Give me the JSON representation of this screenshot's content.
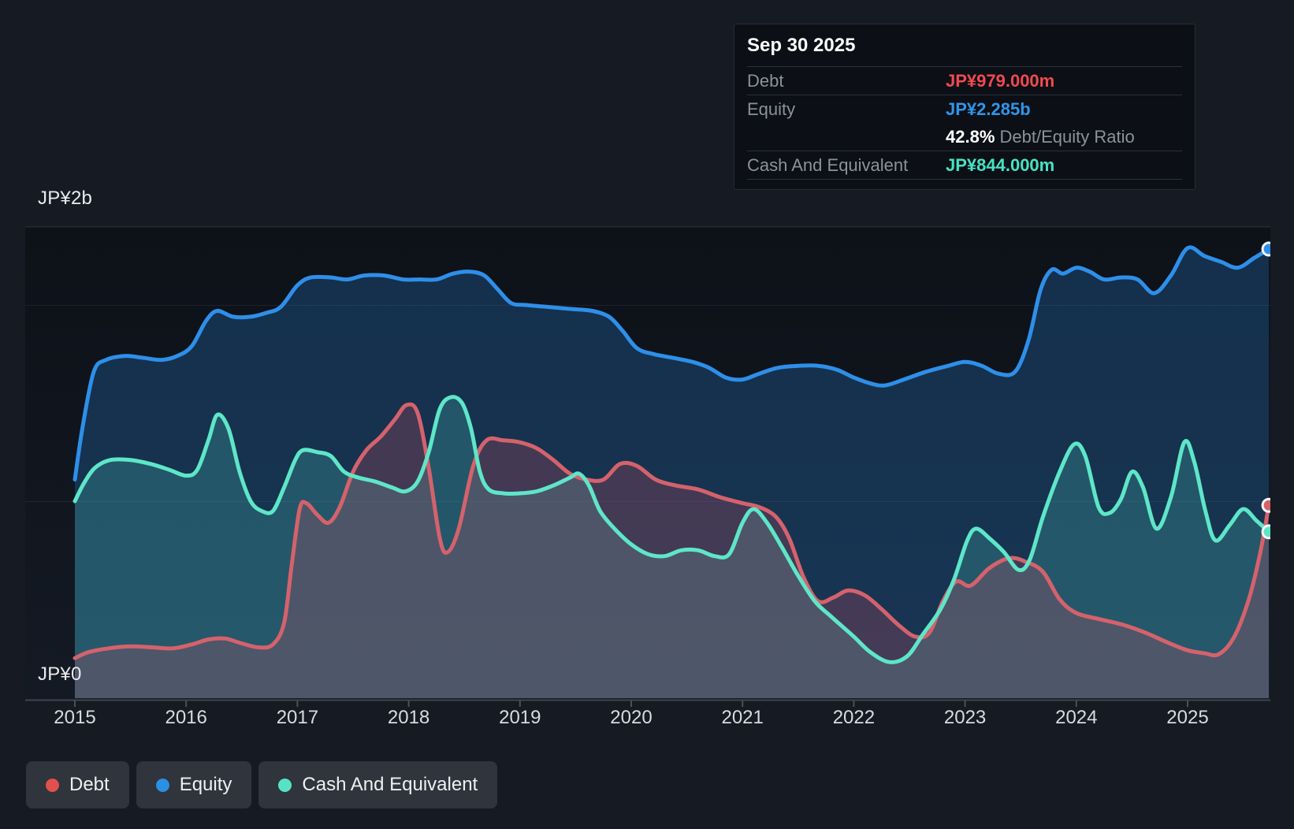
{
  "page": {
    "background": "#161a22"
  },
  "y_axis": {
    "top_label": "JP¥2b",
    "bottom_label": "JP¥0"
  },
  "x_axis": {
    "years": [
      "2015",
      "2016",
      "2017",
      "2018",
      "2019",
      "2020",
      "2021",
      "2022",
      "2023",
      "2024",
      "2025"
    ]
  },
  "tooltip": {
    "date": "Sep 30 2025",
    "rows": [
      {
        "label": "Debt",
        "value": "JP¥979.000m",
        "color": "#ef4a50"
      },
      {
        "label": "Equity",
        "value": "JP¥2.285b",
        "color": "#3095e9"
      },
      {
        "label": "Cash And Equivalent",
        "value": "JP¥844.000m",
        "color": "#46e3c3"
      }
    ],
    "ratio_value": "42.8%",
    "ratio_label": "Debt/Equity Ratio"
  },
  "legend": {
    "items": [
      {
        "label": "Debt",
        "color": "#e2504e"
      },
      {
        "label": "Equity",
        "color": "#2b8fe2"
      },
      {
        "label": "Cash And Equivalent",
        "color": "#57e3c3"
      }
    ]
  },
  "chart_data": {
    "type": "area",
    "unit": "JP¥ billions",
    "xlim": [
      2014.55,
      2025.75
    ],
    "ylim": [
      0,
      2.4
    ],
    "x_ticks": [
      2015,
      2016,
      2017,
      2018,
      2019,
      2020,
      2021,
      2022,
      2023,
      2024,
      2025
    ],
    "y_gridlines": [
      2.4,
      2.0,
      1.0,
      0
    ],
    "legend_position": "bottom-left",
    "grid": true,
    "series": [
      {
        "name": "Equity",
        "line_color": "#2e8fe9",
        "fill_color": "rgba(38,120,196,0.30)",
        "end_value": 2.285,
        "points": [
          [
            2015.0,
            1.11
          ],
          [
            2015.07,
            1.38
          ],
          [
            2015.17,
            1.66
          ],
          [
            2015.28,
            1.72
          ],
          [
            2015.45,
            1.74
          ],
          [
            2015.62,
            1.73
          ],
          [
            2015.78,
            1.72
          ],
          [
            2015.92,
            1.74
          ],
          [
            2016.05,
            1.79
          ],
          [
            2016.18,
            1.92
          ],
          [
            2016.28,
            1.97
          ],
          [
            2016.42,
            1.94
          ],
          [
            2016.58,
            1.94
          ],
          [
            2016.72,
            1.96
          ],
          [
            2016.85,
            1.99
          ],
          [
            2017.0,
            2.1
          ],
          [
            2017.12,
            2.14
          ],
          [
            2017.3,
            2.14
          ],
          [
            2017.45,
            2.13
          ],
          [
            2017.6,
            2.15
          ],
          [
            2017.78,
            2.15
          ],
          [
            2017.95,
            2.13
          ],
          [
            2018.1,
            2.13
          ],
          [
            2018.25,
            2.13
          ],
          [
            2018.4,
            2.16
          ],
          [
            2018.55,
            2.17
          ],
          [
            2018.68,
            2.15
          ],
          [
            2018.8,
            2.08
          ],
          [
            2018.92,
            2.01
          ],
          [
            2019.05,
            2.0
          ],
          [
            2019.25,
            1.99
          ],
          [
            2019.45,
            1.98
          ],
          [
            2019.65,
            1.97
          ],
          [
            2019.8,
            1.94
          ],
          [
            2019.92,
            1.87
          ],
          [
            2020.05,
            1.78
          ],
          [
            2020.2,
            1.75
          ],
          [
            2020.38,
            1.73
          ],
          [
            2020.55,
            1.71
          ],
          [
            2020.7,
            1.68
          ],
          [
            2020.85,
            1.63
          ],
          [
            2021.0,
            1.62
          ],
          [
            2021.15,
            1.65
          ],
          [
            2021.32,
            1.68
          ],
          [
            2021.5,
            1.69
          ],
          [
            2021.68,
            1.69
          ],
          [
            2021.85,
            1.67
          ],
          [
            2022.0,
            1.63
          ],
          [
            2022.15,
            1.6
          ],
          [
            2022.28,
            1.59
          ],
          [
            2022.45,
            1.62
          ],
          [
            2022.65,
            1.66
          ],
          [
            2022.85,
            1.69
          ],
          [
            2023.0,
            1.71
          ],
          [
            2023.15,
            1.69
          ],
          [
            2023.3,
            1.65
          ],
          [
            2023.45,
            1.66
          ],
          [
            2023.57,
            1.82
          ],
          [
            2023.68,
            2.08
          ],
          [
            2023.78,
            2.18
          ],
          [
            2023.88,
            2.16
          ],
          [
            2024.0,
            2.19
          ],
          [
            2024.12,
            2.17
          ],
          [
            2024.25,
            2.13
          ],
          [
            2024.4,
            2.14
          ],
          [
            2024.55,
            2.13
          ],
          [
            2024.7,
            2.06
          ],
          [
            2024.85,
            2.15
          ],
          [
            2025.0,
            2.29
          ],
          [
            2025.15,
            2.25
          ],
          [
            2025.3,
            2.22
          ],
          [
            2025.45,
            2.19
          ],
          [
            2025.6,
            2.24
          ],
          [
            2025.73,
            2.285
          ]
        ]
      },
      {
        "name": "Cash And Equivalent",
        "line_color": "#5ee6c8",
        "fill_color": "rgba(92,230,205,0.20)",
        "end_value": 0.844,
        "points": [
          [
            2015.0,
            1.0
          ],
          [
            2015.08,
            1.09
          ],
          [
            2015.18,
            1.17
          ],
          [
            2015.32,
            1.21
          ],
          [
            2015.5,
            1.21
          ],
          [
            2015.68,
            1.19
          ],
          [
            2015.85,
            1.16
          ],
          [
            2016.0,
            1.13
          ],
          [
            2016.1,
            1.16
          ],
          [
            2016.2,
            1.31
          ],
          [
            2016.28,
            1.44
          ],
          [
            2016.38,
            1.37
          ],
          [
            2016.48,
            1.15
          ],
          [
            2016.58,
            1.0
          ],
          [
            2016.68,
            0.95
          ],
          [
            2016.78,
            0.95
          ],
          [
            2016.88,
            1.07
          ],
          [
            2016.98,
            1.21
          ],
          [
            2017.05,
            1.26
          ],
          [
            2017.18,
            1.25
          ],
          [
            2017.3,
            1.23
          ],
          [
            2017.42,
            1.15
          ],
          [
            2017.55,
            1.12
          ],
          [
            2017.7,
            1.1
          ],
          [
            2017.85,
            1.07
          ],
          [
            2017.97,
            1.05
          ],
          [
            2018.08,
            1.1
          ],
          [
            2018.18,
            1.25
          ],
          [
            2018.28,
            1.47
          ],
          [
            2018.38,
            1.53
          ],
          [
            2018.48,
            1.5
          ],
          [
            2018.56,
            1.37
          ],
          [
            2018.64,
            1.15
          ],
          [
            2018.72,
            1.06
          ],
          [
            2018.85,
            1.04
          ],
          [
            2019.0,
            1.04
          ],
          [
            2019.15,
            1.05
          ],
          [
            2019.3,
            1.08
          ],
          [
            2019.45,
            1.12
          ],
          [
            2019.53,
            1.14
          ],
          [
            2019.62,
            1.08
          ],
          [
            2019.72,
            0.95
          ],
          [
            2019.85,
            0.86
          ],
          [
            2020.0,
            0.78
          ],
          [
            2020.15,
            0.73
          ],
          [
            2020.3,
            0.72
          ],
          [
            2020.45,
            0.75
          ],
          [
            2020.6,
            0.75
          ],
          [
            2020.75,
            0.72
          ],
          [
            2020.88,
            0.73
          ],
          [
            2021.0,
            0.89
          ],
          [
            2021.1,
            0.96
          ],
          [
            2021.22,
            0.89
          ],
          [
            2021.35,
            0.77
          ],
          [
            2021.5,
            0.62
          ],
          [
            2021.65,
            0.49
          ],
          [
            2021.8,
            0.41
          ],
          [
            2022.0,
            0.31
          ],
          [
            2022.15,
            0.23
          ],
          [
            2022.32,
            0.18
          ],
          [
            2022.48,
            0.21
          ],
          [
            2022.62,
            0.32
          ],
          [
            2022.78,
            0.45
          ],
          [
            2022.9,
            0.6
          ],
          [
            2023.02,
            0.8
          ],
          [
            2023.1,
            0.86
          ],
          [
            2023.22,
            0.81
          ],
          [
            2023.35,
            0.74
          ],
          [
            2023.48,
            0.65
          ],
          [
            2023.58,
            0.7
          ],
          [
            2023.7,
            0.92
          ],
          [
            2023.85,
            1.15
          ],
          [
            2023.98,
            1.29
          ],
          [
            2024.08,
            1.23
          ],
          [
            2024.2,
            0.97
          ],
          [
            2024.3,
            0.94
          ],
          [
            2024.4,
            1.01
          ],
          [
            2024.5,
            1.15
          ],
          [
            2024.6,
            1.07
          ],
          [
            2024.72,
            0.86
          ],
          [
            2024.85,
            1.02
          ],
          [
            2024.97,
            1.3
          ],
          [
            2025.06,
            1.2
          ],
          [
            2025.16,
            0.95
          ],
          [
            2025.25,
            0.8
          ],
          [
            2025.38,
            0.88
          ],
          [
            2025.5,
            0.96
          ],
          [
            2025.62,
            0.9
          ],
          [
            2025.73,
            0.844
          ]
        ]
      },
      {
        "name": "Debt",
        "line_color": "#d4626c",
        "fill_color": "rgba(229,84,98,0.22)",
        "end_value": 0.979,
        "points": [
          [
            2015.0,
            0.2
          ],
          [
            2015.12,
            0.23
          ],
          [
            2015.3,
            0.25
          ],
          [
            2015.5,
            0.26
          ],
          [
            2015.7,
            0.255
          ],
          [
            2015.88,
            0.25
          ],
          [
            2016.05,
            0.27
          ],
          [
            2016.2,
            0.295
          ],
          [
            2016.35,
            0.3
          ],
          [
            2016.5,
            0.275
          ],
          [
            2016.65,
            0.255
          ],
          [
            2016.78,
            0.27
          ],
          [
            2016.88,
            0.38
          ],
          [
            2016.95,
            0.68
          ],
          [
            2017.02,
            0.96
          ],
          [
            2017.08,
            0.99
          ],
          [
            2017.18,
            0.93
          ],
          [
            2017.28,
            0.89
          ],
          [
            2017.38,
            0.97
          ],
          [
            2017.5,
            1.15
          ],
          [
            2017.62,
            1.26
          ],
          [
            2017.75,
            1.33
          ],
          [
            2017.88,
            1.42
          ],
          [
            2017.98,
            1.49
          ],
          [
            2018.08,
            1.45
          ],
          [
            2018.18,
            1.17
          ],
          [
            2018.28,
            0.81
          ],
          [
            2018.35,
            0.74
          ],
          [
            2018.45,
            0.86
          ],
          [
            2018.58,
            1.18
          ],
          [
            2018.7,
            1.31
          ],
          [
            2018.85,
            1.31
          ],
          [
            2019.0,
            1.3
          ],
          [
            2019.15,
            1.27
          ],
          [
            2019.3,
            1.21
          ],
          [
            2019.45,
            1.14
          ],
          [
            2019.6,
            1.11
          ],
          [
            2019.75,
            1.11
          ],
          [
            2019.9,
            1.19
          ],
          [
            2020.05,
            1.18
          ],
          [
            2020.22,
            1.11
          ],
          [
            2020.4,
            1.08
          ],
          [
            2020.6,
            1.06
          ],
          [
            2020.8,
            1.02
          ],
          [
            2021.0,
            0.99
          ],
          [
            2021.15,
            0.97
          ],
          [
            2021.3,
            0.92
          ],
          [
            2021.42,
            0.81
          ],
          [
            2021.55,
            0.61
          ],
          [
            2021.68,
            0.49
          ],
          [
            2021.82,
            0.51
          ],
          [
            2021.95,
            0.545
          ],
          [
            2022.1,
            0.52
          ],
          [
            2022.25,
            0.45
          ],
          [
            2022.4,
            0.37
          ],
          [
            2022.55,
            0.31
          ],
          [
            2022.68,
            0.33
          ],
          [
            2022.8,
            0.49
          ],
          [
            2022.92,
            0.59
          ],
          [
            2023.05,
            0.57
          ],
          [
            2023.22,
            0.66
          ],
          [
            2023.4,
            0.71
          ],
          [
            2023.55,
            0.69
          ],
          [
            2023.7,
            0.64
          ],
          [
            2023.85,
            0.5
          ],
          [
            2024.0,
            0.43
          ],
          [
            2024.2,
            0.4
          ],
          [
            2024.42,
            0.37
          ],
          [
            2024.62,
            0.33
          ],
          [
            2024.82,
            0.28
          ],
          [
            2025.0,
            0.24
          ],
          [
            2025.15,
            0.225
          ],
          [
            2025.28,
            0.22
          ],
          [
            2025.42,
            0.31
          ],
          [
            2025.55,
            0.5
          ],
          [
            2025.65,
            0.73
          ],
          [
            2025.73,
            0.979
          ]
        ]
      }
    ]
  }
}
